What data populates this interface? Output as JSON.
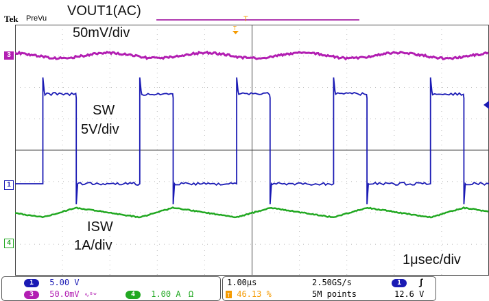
{
  "header": {
    "brand": "Tek",
    "mode": "PreVu"
  },
  "labels": {
    "vout_title": "VOUT1(AC)",
    "vout_scale": "50mV/div",
    "sw_title": "SW",
    "sw_scale": "5V/div",
    "isw_title": "ISW",
    "isw_scale": "1A/div",
    "timebase": "1μsec/div"
  },
  "channel_markers": {
    "ch3": "3",
    "ch1": "1",
    "ch4": "4"
  },
  "colors": {
    "ch1": "#1a1ab4",
    "ch3": "#b21eb2",
    "ch4": "#22a822",
    "trigger": "#f59a00"
  },
  "status": {
    "ch1_badge": "1",
    "ch1_scale": "5.00 V",
    "ch3_badge": "3",
    "ch3_scale": "50.0mV",
    "ch3_coupling": "∿ᴮʷ",
    "ch4_badge": "4",
    "ch4_scale": "1.00 A",
    "ch4_coupling": "Ω",
    "horiz_scale": "1.00μs",
    "trigger_position": "46.13 %",
    "sample_rate": "2.50GS/s",
    "record_length": "5M points",
    "trig_source_badge": "1",
    "trig_slope": "ʃ",
    "trig_level": "12.6 V"
  }
}
